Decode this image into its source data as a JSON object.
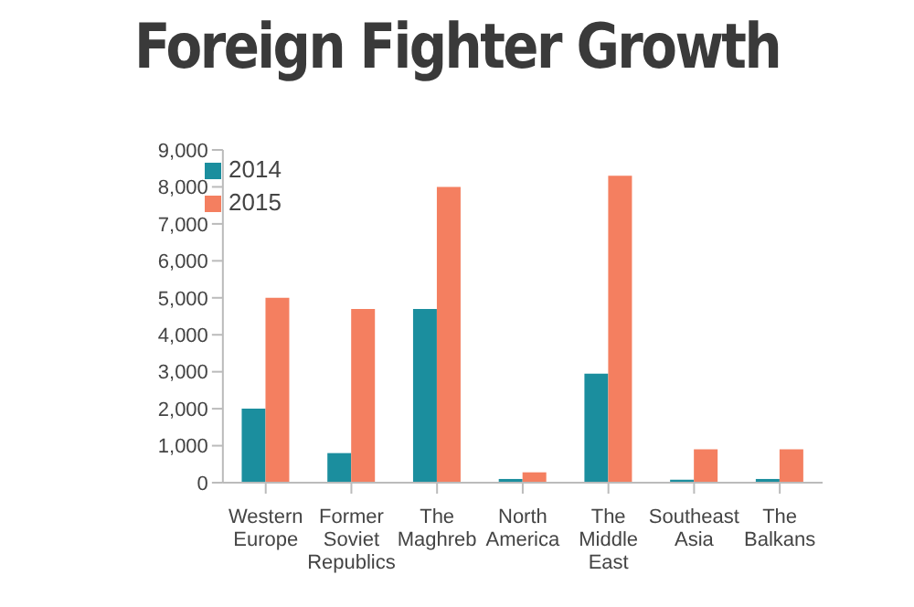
{
  "chart_data": {
    "type": "bar",
    "title": "Foreign Fighter Growth",
    "categories": [
      "Western Europe",
      "Former Soviet Republics",
      "The Maghreb",
      "North America",
      "The Middle East",
      "Southeast Asia",
      "The Balkans"
    ],
    "series": [
      {
        "name": "2014",
        "color": "#1b8e9e",
        "values": [
          2000,
          800,
          4700,
          100,
          2950,
          80,
          100
        ]
      },
      {
        "name": "2015",
        "color": "#f47f60",
        "values": [
          5000,
          4700,
          8000,
          280,
          8300,
          900,
          900
        ]
      }
    ],
    "ylim": [
      0,
      9000
    ],
    "yticks": [
      0,
      {
        "value": 1000,
        "label": "1,000"
      },
      {
        "value": 2000,
        "label": "2,000"
      },
      {
        "value": 3000,
        "label": "3,000"
      },
      {
        "value": 4000,
        "label": "4,000"
      },
      {
        "value": 5000,
        "label": "5,000"
      },
      {
        "value": 6000,
        "label": "6,000"
      },
      {
        "value": 7000,
        "label": "7,000"
      },
      {
        "value": 8000,
        "label": "8,000"
      },
      {
        "value": 9000,
        "label": "9,000"
      }
    ],
    "grid": false,
    "legend": "top left"
  }
}
